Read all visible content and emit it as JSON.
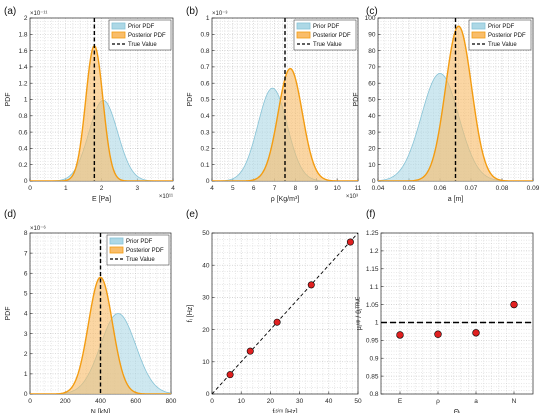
{
  "colors": {
    "prior_fill": "#add8e6",
    "prior_line": "#87c3d6",
    "posterior_fill": "#f9bd6a",
    "posterior_line": "#f39c12",
    "true_value": "#000000",
    "marker_fill": "#e02020",
    "axis": "#262626",
    "grid": "#bdbdbd"
  },
  "legend_labels": [
    "Prior PDF",
    "Posterior PDF",
    "True Value"
  ],
  "chart_data": [
    {
      "id": "a",
      "panel_label": "(a)",
      "type": "area",
      "xlabel": "E [Pa]",
      "ylabel": "PDF",
      "xlim": [
        0,
        4
      ],
      "ylim": [
        0,
        2
      ],
      "xticks": [
        0,
        1,
        2,
        3,
        4
      ],
      "yticks": [
        0,
        0.2,
        0.4,
        0.6,
        0.8,
        1,
        1.2,
        1.4,
        1.6,
        1.8,
        2
      ],
      "xticks_labels": [
        "0",
        "1",
        "2",
        "3",
        "4"
      ],
      "yticks_labels": [
        "0",
        "0.2",
        "0.4",
        "0.6",
        "0.8",
        "1",
        "1.2",
        "1.4",
        "1.6",
        "1.8",
        "2"
      ],
      "x_exponent": "×10¹¹",
      "y_exponent": "×10⁻¹¹",
      "grid": true,
      "legend": "top-right",
      "series": [
        {
          "name": "Prior PDF",
          "kind": "gaussian",
          "mean": 2.05,
          "sd": 0.4,
          "peak": 0.99
        },
        {
          "name": "Posterior PDF",
          "kind": "gaussian",
          "mean": 1.8,
          "sd": 0.24,
          "peak": 1.66
        }
      ],
      "true_value": 1.8
    },
    {
      "id": "b",
      "panel_label": "(b)",
      "type": "area",
      "xlabel": "ρ  [Kg/m³]",
      "ylabel": "PDF",
      "xlim": [
        4,
        11
      ],
      "ylim": [
        0,
        1
      ],
      "xticks": [
        4,
        5,
        6,
        7,
        8,
        9,
        10,
        11
      ],
      "yticks": [
        0,
        0.1,
        0.2,
        0.3,
        0.4,
        0.5,
        0.6,
        0.7,
        0.8,
        0.9,
        1
      ],
      "xticks_labels": [
        "4",
        "5",
        "6",
        "7",
        "8",
        "9",
        "10",
        "11"
      ],
      "yticks_labels": [
        "0",
        "0.1",
        "0.2",
        "0.3",
        "0.4",
        "0.5",
        "0.6",
        "0.7",
        "0.8",
        "0.9",
        "1"
      ],
      "x_exponent": "×10³",
      "y_exponent": "×10⁻³",
      "grid": true,
      "legend": "top-right",
      "series": [
        {
          "name": "Prior PDF",
          "kind": "gaussian",
          "mean": 6.9,
          "sd": 0.7,
          "peak": 0.57
        },
        {
          "name": "Posterior PDF",
          "kind": "gaussian",
          "mean": 7.75,
          "sd": 0.58,
          "peak": 0.69
        }
      ],
      "true_value": 7.5
    },
    {
      "id": "c",
      "panel_label": "(c)",
      "type": "area",
      "xlabel": "a  [m]",
      "ylabel": "PDF",
      "xlim": [
        0.04,
        0.09
      ],
      "ylim": [
        0,
        100
      ],
      "xticks": [
        0.04,
        0.05,
        0.06,
        0.07,
        0.08,
        0.09
      ],
      "yticks": [
        0,
        10,
        20,
        30,
        40,
        50,
        60,
        70,
        80,
        90,
        100
      ],
      "xticks_labels": [
        "0.04",
        "0.05",
        "0.06",
        "0.07",
        "0.08",
        "0.09"
      ],
      "yticks_labels": [
        "0",
        "10",
        "20",
        "30",
        "40",
        "50",
        "60",
        "70",
        "80",
        "90",
        "100"
      ],
      "grid": true,
      "legend": "top-right",
      "series": [
        {
          "name": "Prior PDF",
          "kind": "gaussian",
          "mean": 0.06,
          "sd": 0.006,
          "peak": 66
        },
        {
          "name": "Posterior PDF",
          "kind": "gaussian",
          "mean": 0.066,
          "sd": 0.0042,
          "peak": 95
        }
      ],
      "true_value": 0.065
    },
    {
      "id": "d",
      "panel_label": "(d)",
      "type": "area",
      "xlabel": "N [kN]",
      "ylabel": "PDF",
      "xlim": [
        0,
        800
      ],
      "ylim": [
        0,
        8
      ],
      "xticks": [
        0,
        200,
        400,
        600,
        800
      ],
      "yticks": [
        0,
        1,
        2,
        3,
        4,
        5,
        6,
        7,
        8
      ],
      "xticks_labels": [
        "0",
        "200",
        "400",
        "600",
        "800"
      ],
      "yticks_labels": [
        "0",
        "1",
        "2",
        "3",
        "4",
        "5",
        "6",
        "7",
        "8"
      ],
      "y_exponent": "×10⁻⁶",
      "grid": true,
      "legend": "top-right",
      "series": [
        {
          "name": "Prior PDF",
          "kind": "gaussian",
          "mean": 500,
          "sd": 100,
          "peak": 4.0
        },
        {
          "name": "Posterior PDF",
          "kind": "gaussian",
          "mean": 400,
          "sd": 68,
          "peak": 5.8
        }
      ],
      "true_value": 400
    },
    {
      "id": "e",
      "panel_label": "(e)",
      "type": "scatter",
      "xlabel": "fᵢˢⁱᵐ  [Hz]",
      "ylabel": "fᵢ  [Hz]",
      "xlim": [
        0,
        50
      ],
      "ylim": [
        0,
        50
      ],
      "xticks": [
        0,
        10,
        20,
        30,
        40,
        50
      ],
      "yticks": [
        0,
        10,
        20,
        30,
        40,
        50
      ],
      "xticks_labels": [
        "0",
        "10",
        "20",
        "30",
        "40",
        "50"
      ],
      "yticks_labels": [
        "0",
        "10",
        "20",
        "30",
        "40",
        "50"
      ],
      "grid": true,
      "x": [
        6.2,
        13.1,
        22.3,
        34.0,
        47.4
      ],
      "y": [
        6.0,
        13.3,
        22.3,
        33.9,
        47.2
      ],
      "reference_line": [
        [
          0,
          0
        ],
        [
          50,
          50
        ]
      ]
    },
    {
      "id": "f",
      "panel_label": "(f)",
      "type": "scatter",
      "xlabel": "Θⱼ",
      "ylabel": "μⱼᵘᵖ / θⱼᵀᴿᵁᴱ",
      "xlim": [
        0.5,
        4.5
      ],
      "ylim": [
        0.8,
        1.25
      ],
      "categories": [
        "E",
        "ρ",
        "a",
        "N"
      ],
      "yticks": [
        0.8,
        0.85,
        0.9,
        0.95,
        1,
        1.05,
        1.1,
        1.15,
        1.2,
        1.25
      ],
      "yticks_labels": [
        "0.8",
        "0.85",
        "0.9",
        "0.95",
        "1",
        "1.05",
        "1.1",
        "1.15",
        "1.2",
        "1.25"
      ],
      "grid": true,
      "values": [
        0.965,
        0.967,
        0.971,
        1.05
      ],
      "reference_value": 1
    }
  ]
}
